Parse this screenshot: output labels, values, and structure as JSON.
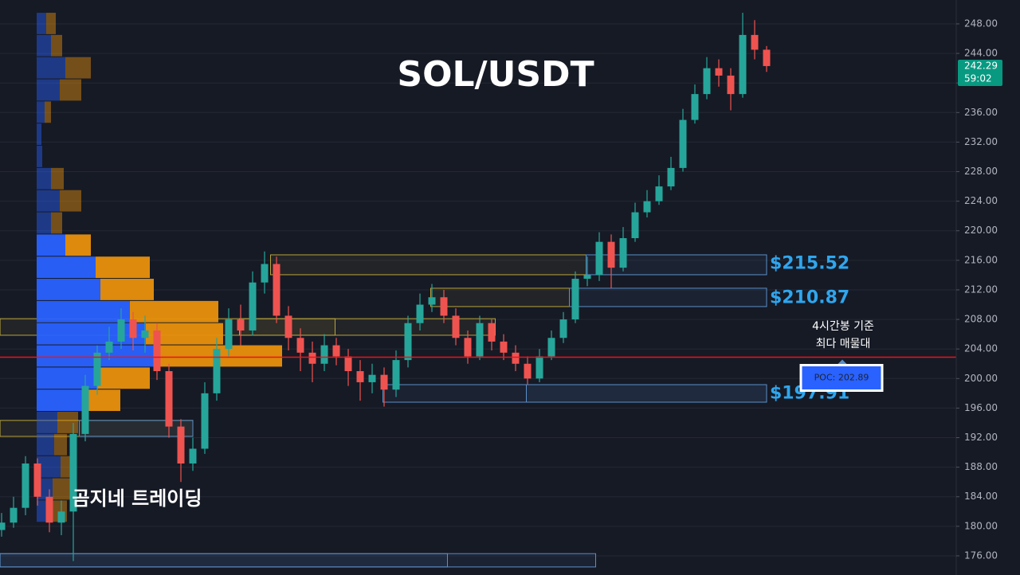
{
  "chart_data": {
    "type": "candlestick",
    "title": "SOL/USDT",
    "watermark": "곰지네 트레이딩",
    "open": [
      179.5,
      180.5,
      182.5,
      188.5,
      184,
      180.5,
      182,
      192.5,
      199,
      203.5,
      205,
      208,
      205.5,
      206.5,
      201,
      193.5,
      188.5,
      190.5,
      198,
      204,
      208,
      206.5,
      213,
      215.5,
      208.5,
      205.5,
      203.5,
      202,
      204.5,
      203,
      201,
      199.5,
      200.5,
      198.5,
      202.5,
      207.5,
      210,
      211,
      208.5,
      205.5,
      203,
      207.5,
      205,
      203.5,
      202,
      200,
      203,
      205.5,
      208,
      213.5,
      214,
      218.5,
      215,
      219,
      222.5,
      224,
      226,
      228.5,
      235,
      238.5,
      242,
      241,
      238.5,
      246.5,
      244.5
    ],
    "high": [
      181.8,
      184,
      189.5,
      189.2,
      185,
      183.5,
      194,
      200.5,
      204.5,
      207,
      209.5,
      209,
      208.5,
      207.5,
      202,
      194.5,
      192,
      199.5,
      205.5,
      209.5,
      210,
      214.5,
      217.2,
      216.5,
      209.8,
      206.8,
      205,
      206,
      205.5,
      204,
      202.5,
      202,
      201.5,
      203.8,
      208.5,
      211.5,
      212.8,
      212,
      209.5,
      206.5,
      208.5,
      208,
      206,
      204.5,
      203,
      204,
      206.5,
      209,
      214.5,
      216.5,
      219.8,
      219.5,
      220.5,
      223.8,
      225.5,
      227.5,
      230,
      236.5,
      239.8,
      243.5,
      243.2,
      242,
      249.5,
      248.5,
      245
    ],
    "low": [
      178.6,
      179.8,
      181.5,
      182.8,
      179.2,
      178.8,
      175.3,
      191.5,
      197.8,
      202.5,
      204,
      203.8,
      203.5,
      199.8,
      192,
      186,
      187.5,
      189.8,
      197,
      203,
      204.5,
      205.8,
      211.5,
      207.5,
      203.8,
      201,
      199.5,
      201,
      201.8,
      199,
      197,
      198,
      196.2,
      197.5,
      201.5,
      206.5,
      209,
      207.5,
      204.5,
      202,
      202.5,
      203.8,
      202.5,
      201,
      199.2,
      199.5,
      202.5,
      204.8,
      207.5,
      212.5,
      213.2,
      212.2,
      214.5,
      218.5,
      221.8,
      223.5,
      225.5,
      228,
      234.5,
      237.8,
      239.5,
      236.3,
      238,
      243.2,
      241.5
    ],
    "close": [
      180.5,
      182.5,
      188.5,
      184,
      180.5,
      182,
      192.5,
      199,
      203.5,
      205,
      208,
      205.5,
      206.5,
      201,
      193.5,
      188.5,
      190.5,
      198,
      204,
      208,
      206.5,
      213,
      215.5,
      208.5,
      205.5,
      203.5,
      202,
      204.5,
      203,
      201,
      199.5,
      200.5,
      198.5,
      202.5,
      207.5,
      210,
      211,
      208.5,
      205.5,
      203,
      207.5,
      205,
      203.5,
      202,
      200,
      203,
      205.5,
      208,
      213.5,
      214,
      218.5,
      215,
      219,
      222.5,
      224,
      226,
      228.5,
      235,
      238.5,
      242,
      241,
      238.5,
      246.5,
      244.5,
      242.29
    ],
    "up_color": "#26a69a",
    "down_color": "#ef5350",
    "ylim": [
      173.41,
      251.23
    ],
    "yticks": [
      {
        "value": 176,
        "label": "176.00"
      },
      {
        "value": 180,
        "label": "180.00"
      },
      {
        "value": 184,
        "label": "184.00"
      },
      {
        "value": 188,
        "label": "188.00"
      },
      {
        "value": 192,
        "label": "192.00"
      },
      {
        "value": 196,
        "label": "196.00"
      },
      {
        "value": 200,
        "label": "200.00"
      },
      {
        "value": 204,
        "label": "204.00"
      },
      {
        "value": 208,
        "label": "208.00"
      },
      {
        "value": 212,
        "label": "212.00"
      },
      {
        "value": 216,
        "label": "216.00"
      },
      {
        "value": 220,
        "label": "220.00"
      },
      {
        "value": 224,
        "label": "224.00"
      },
      {
        "value": 228,
        "label": "228.00"
      },
      {
        "value": 232,
        "label": "232.00"
      },
      {
        "value": 236,
        "label": "236.00"
      },
      {
        "value": 240,
        "label": "240.00"
      },
      {
        "value": 244,
        "label": "244.00"
      },
      {
        "value": 248,
        "label": "248.00"
      }
    ],
    "grid": true,
    "countdown": "59:02",
    "last_price_color": "#089981",
    "poc": {
      "value": 202.89,
      "label": "POC: 202.89",
      "color": "#e8141c"
    },
    "annotation": [
      "4시간봉 기준",
      "최다 매물대"
    ],
    "zones": [
      {
        "low": 214.05,
        "high": 216.74,
        "start": 22.5,
        "end": 48.9,
        "color": "#b9a43a"
      },
      {
        "low": 214.05,
        "high": 216.74,
        "start": 48.9,
        "end": 64,
        "color": "#5b8fc7",
        "level": 215.52,
        "label": "$215.52"
      },
      {
        "low": 209.74,
        "high": 212.22,
        "start": 35.9,
        "end": 47.5,
        "color": "#b9a43a"
      },
      {
        "low": 209.74,
        "high": 212.22,
        "start": 47.5,
        "end": 64,
        "color": "#5b8fc7",
        "level": 210.87,
        "label": "$210.87"
      },
      {
        "low": 205.86,
        "high": 208.1,
        "start": -0.13,
        "end": 27.9,
        "color": "#b9a43a"
      },
      {
        "low": 205.86,
        "high": 208.1,
        "start": 19.9,
        "end": 41.3,
        "color": "#b9a43a"
      },
      {
        "low": 196.8,
        "high": 199.17,
        "start": 31.9,
        "end": 64,
        "color": "#5b8fc7",
        "level": 197.91,
        "label": "$197.91"
      },
      {
        "low": 196.8,
        "high": 199.17,
        "start": 43.9,
        "end": 64,
        "color": "#5b8fc7"
      },
      {
        "low": 192.17,
        "high": 194.33,
        "start": -0.13,
        "end": 16,
        "color": "#b9a43a"
      },
      {
        "low": 192.17,
        "high": 194.33,
        "start": 6.5,
        "end": 16,
        "color": "#5b8fc7"
      },
      {
        "low": 174.5,
        "high": 176.3,
        "start": -0.13,
        "end": 49.7,
        "color": "#5b8fc7"
      },
      {
        "low": 174.5,
        "high": 176.3,
        "start": -0.13,
        "end": 37.3,
        "color": "#5b8fc7"
      }
    ],
    "volume_profile": {
      "bins": [
        249.5,
        246.5,
        243.5,
        240.5,
        237.5,
        234.5,
        231.5,
        228.5,
        225.5,
        222.5,
        219.5,
        216.5,
        213.5,
        210.5,
        207.5,
        204.5,
        201.5,
        198.5,
        195.5,
        192.5,
        189.5,
        186.5,
        183.5,
        180.5
      ],
      "buy": [
        12,
        18,
        36,
        29,
        10,
        6,
        7,
        18,
        29,
        18,
        36,
        74,
        80,
        117,
        137,
        154,
        76,
        57,
        26,
        22,
        30,
        20,
        20
      ],
      "sell": [
        12,
        14,
        32,
        27,
        8,
        0,
        0,
        16,
        27,
        14,
        32,
        68,
        67,
        111,
        97,
        154,
        66,
        48,
        26,
        16,
        20,
        22,
        18
      ],
      "in_value_area": [
        false,
        false,
        false,
        false,
        false,
        false,
        false,
        false,
        false,
        false,
        true,
        true,
        true,
        true,
        true,
        true,
        true,
        true,
        false,
        false,
        false,
        false,
        false
      ],
      "buy_color": "#2962ff",
      "sell_color": "#e8900c"
    }
  }
}
